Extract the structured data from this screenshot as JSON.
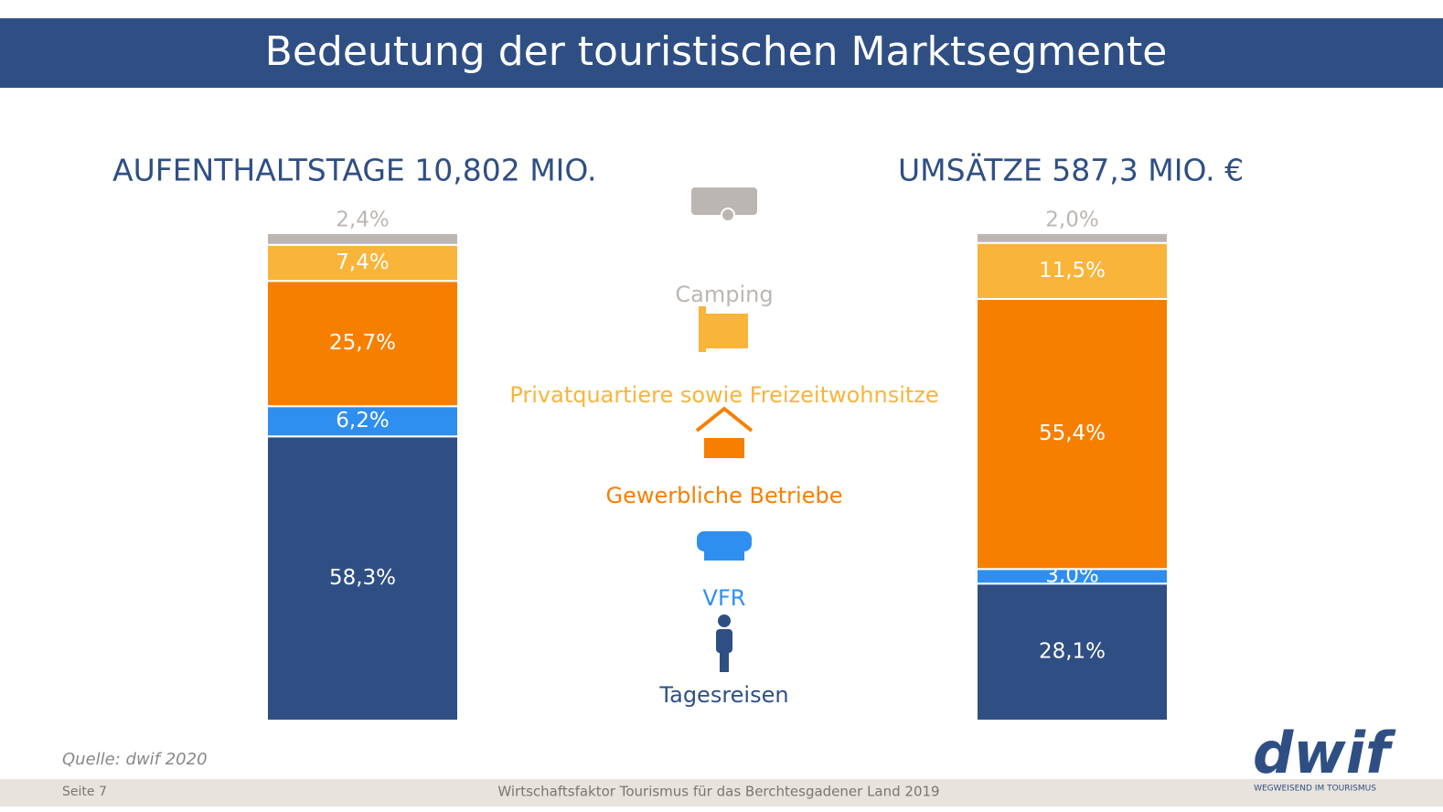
{
  "title": "Bedeutung der touristischen Marktsegmente",
  "chart_data": {
    "type": "bar",
    "stacked": true,
    "categories": [
      "AUFENTHALTSTAGE 10,802 MIO.",
      "UMSÄTZE 587,3 MIO. €"
    ],
    "ylim": [
      0,
      100
    ],
    "series": [
      {
        "name": "Tagesreisen",
        "color": "#2f4f84",
        "values": [
          58.3,
          28.1
        ],
        "value_labels": [
          "58,3%",
          "28,1%"
        ]
      },
      {
        "name": "VFR",
        "color": "#2f8ff0",
        "values": [
          6.2,
          3.0
        ],
        "value_labels": [
          "6,2%",
          "3,0%"
        ]
      },
      {
        "name": "Gewerbliche Betriebe",
        "color": "#f77f00",
        "values": [
          25.7,
          55.4
        ],
        "value_labels": [
          "25,7%",
          "55,4%"
        ]
      },
      {
        "name": "Privatquartiere sowie Freizeitwohnsitze",
        "color": "#f9b43a",
        "values": [
          7.4,
          11.5
        ],
        "value_labels": [
          "7,4%",
          "11,5%"
        ]
      },
      {
        "name": "Camping",
        "color": "#bcb6b2",
        "values": [
          2.4,
          2.0
        ],
        "value_labels": [
          "2,4%",
          "2,0%"
        ]
      }
    ]
  },
  "source": "Quelle: dwif 2020",
  "page": "Seite 7",
  "footer": "Wirtschaftsfaktor Tourismus für das Berchtesgadener Land 2019",
  "logo": "dwif",
  "tagline": "WEGWEISEND IM TOURISMUS"
}
